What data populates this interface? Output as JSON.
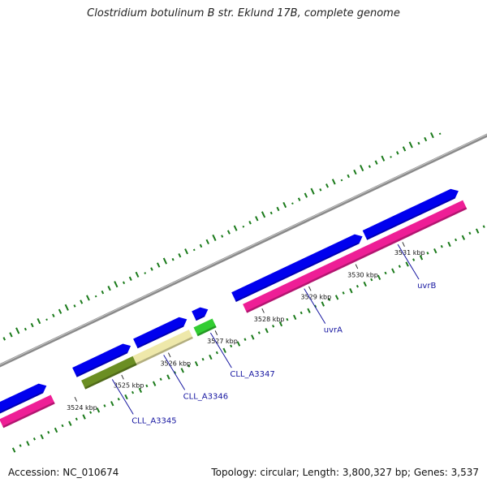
{
  "title": "Clostridium botulinum B str. Eklund 17B, complete genome",
  "footer": {
    "accession": "Accession: NC_010674",
    "summary": "Topology: circular; Length: 3,800,327 bp; Genes: 3,537"
  },
  "colors": {
    "backbone": "#8a8a8a",
    "forward_gene": "#0000ee",
    "reverse_gene": "#ee1e96",
    "cds_olive": "#6b8e23",
    "cds_khaki": "#eee8aa",
    "cds_green": "#32cd32",
    "gc_skew": "#1a7a1a",
    "label": "#1515a0"
  },
  "scale": {
    "ticks": [
      {
        "label": "3524 kbp",
        "kbp": 3524
      },
      {
        "label": "3525 kbp",
        "kbp": 3525
      },
      {
        "label": "3526 kbp",
        "kbp": 3526
      },
      {
        "label": "3527 kbp",
        "kbp": 3527
      },
      {
        "label": "3528 kbp",
        "kbp": 3528
      },
      {
        "label": "3529 kbp",
        "kbp": 3529
      },
      {
        "label": "3530 kbp",
        "kbp": 3530
      },
      {
        "label": "3531 kbp",
        "kbp": 3531
      }
    ]
  },
  "forward_genes": [
    {
      "start": 3522.5,
      "end": 3523.6
    },
    {
      "start": 3524.2,
      "end": 3525.4
    },
    {
      "start": 3525.5,
      "end": 3526.6
    },
    {
      "start": 3526.75,
      "end": 3527.05
    },
    {
      "start": 3527.6,
      "end": 3530.35
    },
    {
      "start": 3530.4,
      "end": 3532.4
    }
  ],
  "reverse_genes": [
    {
      "start": 3522.5,
      "end": 3523.6
    },
    {
      "start": 3527.7,
      "end": 3532.4
    }
  ],
  "cds_features": [
    {
      "name": "CLL_A3345",
      "start": 3524.25,
      "end": 3525.35,
      "color": "#6b8e23"
    },
    {
      "name": "CLL_A3346",
      "start": 3525.35,
      "end": 3526.55,
      "color": "#eee8aa"
    },
    {
      "name": "CLL_A3347",
      "start": 3526.65,
      "end": 3527.05,
      "color": "#32cd32"
    }
  ],
  "gene_labels": [
    {
      "text": "CLL_A3345",
      "kbp": 3524.8
    },
    {
      "text": "CLL_A3346",
      "kbp": 3525.9
    },
    {
      "text": "CLL_A3347",
      "kbp": 3526.9
    },
    {
      "text": "uvrA",
      "kbp": 3528.9
    },
    {
      "text": "uvrB",
      "kbp": 3530.9
    }
  ]
}
